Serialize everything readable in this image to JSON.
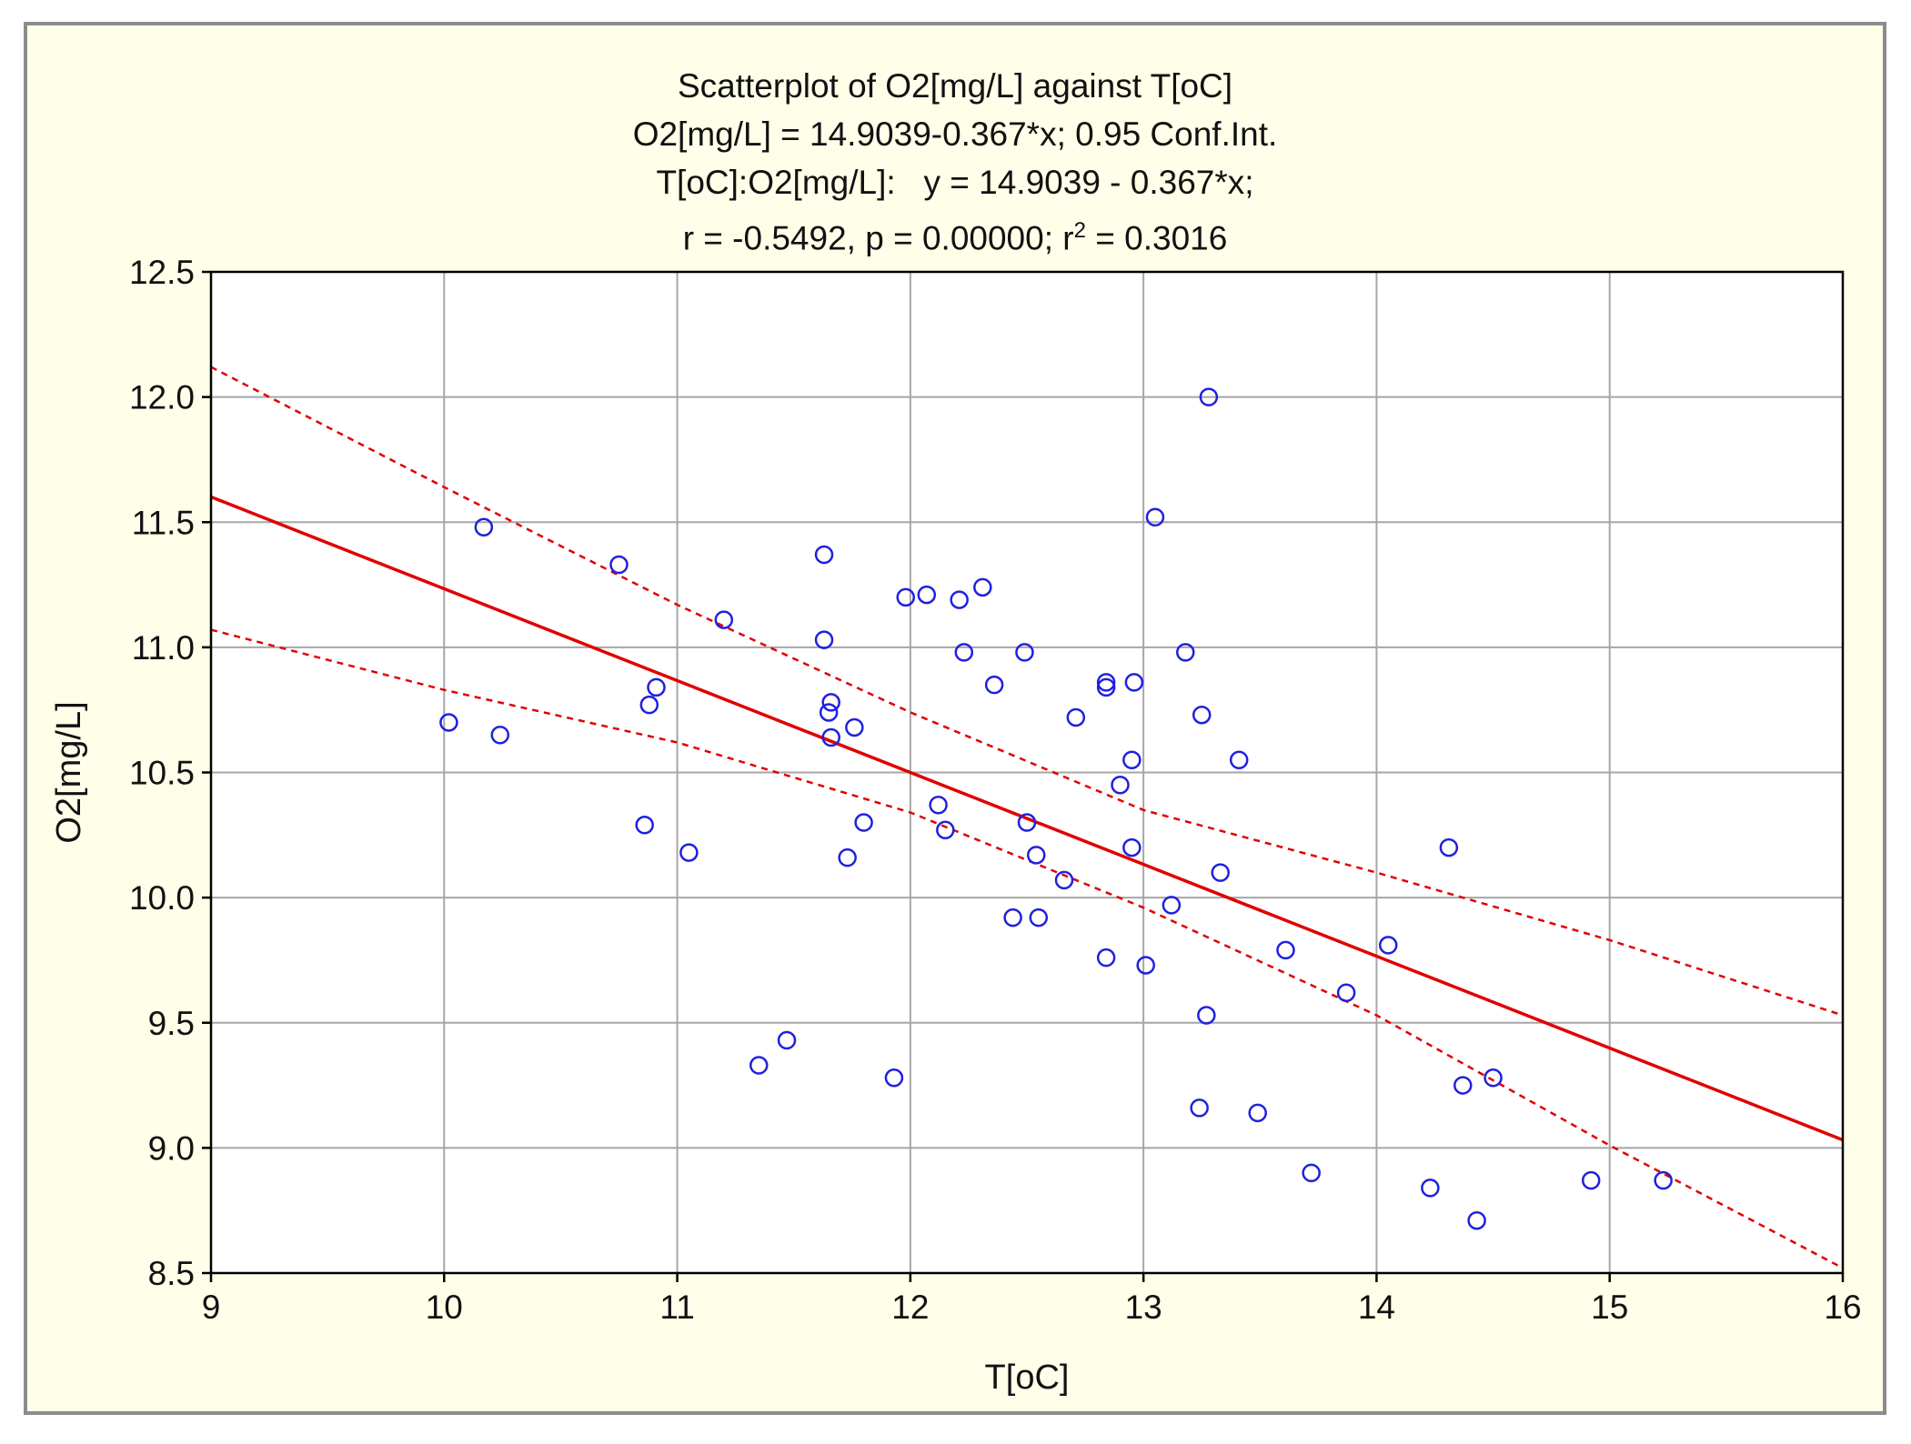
{
  "chart_data": {
    "type": "scatter",
    "title": "Scatterplot of O2[mg/L] against T[oC]",
    "subtitle_lines": [
      "O2[mg/L] = 14.9039-0.367*x; 0.95 Conf.Int.",
      "T[oC]:O2[mg/L]:   y = 14.9039 - 0.367*x;"
    ],
    "stats_line": {
      "prefix": "r = -0.5492, p = 0.00000; r",
      "superscript": "2",
      "suffix": " = 0.3016"
    },
    "xlabel": "T[oC]",
    "ylabel": "O2[mg/L]",
    "xlim": [
      9,
      16
    ],
    "ylim": [
      8.5,
      12.5
    ],
    "x_ticks": [
      9,
      10,
      11,
      12,
      13,
      14,
      15,
      16
    ],
    "x_tick_labels": [
      "9",
      "10",
      "11",
      "12",
      "13",
      "14",
      "15",
      "16"
    ],
    "y_ticks": [
      8.5,
      9.0,
      9.5,
      10.0,
      10.5,
      11.0,
      11.5,
      12.0,
      12.5
    ],
    "y_tick_labels": [
      "8.5",
      "9.0",
      "9.5",
      "10.0",
      "10.5",
      "11.0",
      "11.5",
      "12.0",
      "12.5"
    ],
    "grid": true,
    "regression": {
      "intercept": 14.9039,
      "slope": -0.367
    },
    "confidence_band": {
      "level": 0.95,
      "upper": [
        [
          9,
          12.12
        ],
        [
          10,
          11.64
        ],
        [
          11,
          11.17
        ],
        [
          12,
          10.74
        ],
        [
          13,
          10.35
        ],
        [
          14,
          10.1
        ],
        [
          15,
          9.83
        ],
        [
          16,
          9.53
        ]
      ],
      "lower": [
        [
          9,
          11.07
        ],
        [
          10,
          10.83
        ],
        [
          11,
          10.62
        ],
        [
          12,
          10.34
        ],
        [
          13,
          9.96
        ],
        [
          14,
          9.53
        ],
        [
          15,
          9.01
        ],
        [
          16,
          8.52
        ]
      ]
    },
    "points": [
      [
        10.02,
        10.7
      ],
      [
        10.17,
        11.48
      ],
      [
        10.24,
        10.65
      ],
      [
        10.75,
        11.33
      ],
      [
        10.86,
        10.29
      ],
      [
        10.88,
        10.77
      ],
      [
        10.91,
        10.84
      ],
      [
        11.05,
        10.18
      ],
      [
        11.2,
        11.11
      ],
      [
        11.35,
        9.33
      ],
      [
        11.47,
        9.43
      ],
      [
        11.63,
        11.37
      ],
      [
        11.63,
        11.03
      ],
      [
        11.65,
        10.74
      ],
      [
        11.66,
        10.78
      ],
      [
        11.66,
        10.64
      ],
      [
        11.73,
        10.16
      ],
      [
        11.76,
        10.68
      ],
      [
        11.8,
        10.3
      ],
      [
        11.93,
        9.28
      ],
      [
        11.98,
        11.2
      ],
      [
        12.07,
        11.21
      ],
      [
        12.12,
        10.37
      ],
      [
        12.15,
        10.27
      ],
      [
        12.21,
        11.19
      ],
      [
        12.23,
        10.98
      ],
      [
        12.31,
        11.24
      ],
      [
        12.36,
        10.85
      ],
      [
        12.44,
        9.92
      ],
      [
        12.49,
        10.98
      ],
      [
        12.5,
        10.3
      ],
      [
        12.54,
        10.17
      ],
      [
        12.55,
        9.92
      ],
      [
        12.66,
        10.07
      ],
      [
        12.71,
        10.72
      ],
      [
        12.84,
        10.86
      ],
      [
        12.84,
        10.84
      ],
      [
        12.84,
        9.76
      ],
      [
        12.9,
        10.45
      ],
      [
        12.95,
        10.55
      ],
      [
        12.95,
        10.2
      ],
      [
        12.96,
        10.86
      ],
      [
        13.01,
        9.73
      ],
      [
        13.05,
        11.52
      ],
      [
        13.12,
        9.97
      ],
      [
        13.18,
        10.98
      ],
      [
        13.24,
        9.16
      ],
      [
        13.25,
        10.73
      ],
      [
        13.27,
        9.53
      ],
      [
        13.28,
        12.0
      ],
      [
        13.33,
        10.1
      ],
      [
        13.41,
        10.55
      ],
      [
        13.49,
        9.14
      ],
      [
        13.61,
        9.79
      ],
      [
        13.72,
        8.9
      ],
      [
        13.87,
        9.62
      ],
      [
        14.05,
        9.81
      ],
      [
        14.23,
        8.84
      ],
      [
        14.31,
        10.2
      ],
      [
        14.37,
        9.25
      ],
      [
        14.43,
        8.71
      ],
      [
        14.5,
        9.28
      ],
      [
        14.92,
        8.87
      ],
      [
        15.23,
        8.87
      ]
    ],
    "colors": {
      "points": "#2020e0",
      "fit": "#e00000",
      "band": "#e00000",
      "grid": "#a6a6a6",
      "axis": "#000000",
      "plot_bg": "#ffffff",
      "frame_bg": "#fefee9"
    }
  }
}
